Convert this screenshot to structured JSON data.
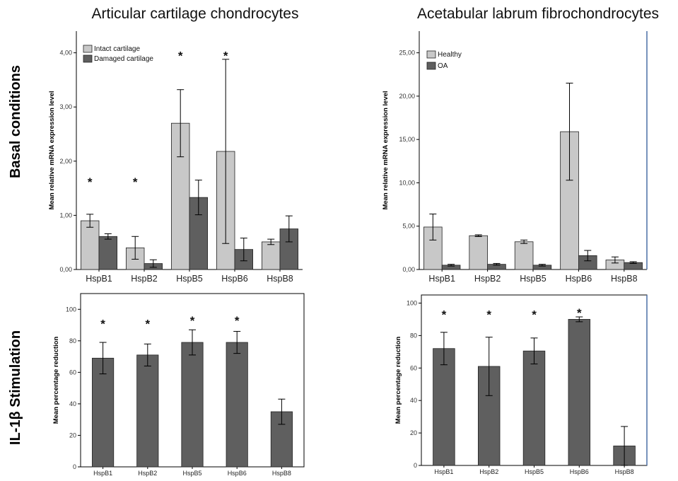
{
  "columns": [
    "Articular cartilage chondrocytes",
    "Acetabular labrum fibrochondrocytes"
  ],
  "rows": [
    "Basal conditions",
    "IL-1β Stimulation"
  ],
  "colors": {
    "light": "#c8c8c8",
    "dark": "#5f5f5f",
    "edge": "#000000",
    "right_border": "#4a6fa5"
  },
  "chart_data": [
    {
      "id": "basal-cartilage",
      "type": "bar",
      "ylabel": "Mean relative mRNA expression level",
      "ylim": [
        0,
        4.4
      ],
      "yticks": [
        0,
        1,
        2,
        3,
        4
      ],
      "ytick_labels": [
        "0,00",
        "1,00",
        "2,00",
        "3,00",
        "4,00"
      ],
      "categories": [
        "HspB1",
        "HspB2",
        "HspB5",
        "HspB6",
        "HspB8"
      ],
      "legend": "top-left",
      "series": [
        {
          "name": "Intact cartilage",
          "color": "#c8c8c8",
          "values": [
            0.9,
            0.4,
            2.7,
            2.18,
            0.51
          ],
          "errors": [
            0.12,
            0.21,
            0.62,
            1.7,
            0.05
          ]
        },
        {
          "name": "Damaged cartilage",
          "color": "#5f5f5f",
          "values": [
            0.61,
            0.11,
            1.33,
            0.37,
            0.75
          ],
          "errors": [
            0.05,
            0.07,
            0.32,
            0.21,
            0.24
          ]
        }
      ],
      "significance": [
        {
          "category": "HspB1",
          "value": 1.62,
          "text": "*"
        },
        {
          "category": "HspB2",
          "value": 1.62,
          "text": "*"
        },
        {
          "category": "HspB5",
          "value": 3.95,
          "text": "*"
        },
        {
          "category": "HspB6",
          "value": 3.95,
          "text": "*"
        }
      ]
    },
    {
      "id": "basal-labrum",
      "type": "bar",
      "ylabel": "Mean relative mRNA expression level",
      "ylim": [
        0,
        27.5
      ],
      "yticks": [
        0,
        5,
        10,
        15,
        20,
        25
      ],
      "ytick_labels": [
        "0,00",
        "5,00",
        "10,00",
        "15,00",
        "20,00",
        "25,00"
      ],
      "categories": [
        "HspB1",
        "HspB2",
        "HspB5",
        "HspB6",
        "HspB8"
      ],
      "legend": "top-left",
      "series": [
        {
          "name": "Healthy",
          "color": "#c8c8c8",
          "values": [
            4.9,
            3.9,
            3.2,
            15.9,
            1.1
          ],
          "errors": [
            1.5,
            0.1,
            0.2,
            5.6,
            0.35
          ]
        },
        {
          "name": "OA",
          "color": "#5f5f5f",
          "values": [
            0.5,
            0.6,
            0.5,
            1.6,
            0.8
          ],
          "errors": [
            0.1,
            0.1,
            0.1,
            0.6,
            0.1
          ]
        }
      ],
      "significance": []
    },
    {
      "id": "il1b-cartilage",
      "type": "bar",
      "ylabel": "Mean percentage reduction",
      "ylim": [
        0,
        110
      ],
      "yticks": [
        0,
        20,
        40,
        60,
        80,
        100
      ],
      "ytick_labels": [
        "0",
        "20",
        "40",
        "60",
        "80",
        "100"
      ],
      "categories": [
        "HspB1",
        "HspB2",
        "HspB5",
        "HspB6",
        "HspB8"
      ],
      "series": [
        {
          "name": "",
          "color": "#5f5f5f",
          "values": [
            69,
            71,
            79,
            79,
            35
          ],
          "errors": [
            10,
            7,
            8,
            7,
            8
          ]
        }
      ],
      "significance": [
        {
          "category": "HspB1",
          "value": 91,
          "text": "*"
        },
        {
          "category": "HspB2",
          "value": 91,
          "text": "*"
        },
        {
          "category": "HspB5",
          "value": 93,
          "text": "*"
        },
        {
          "category": "HspB6",
          "value": 93,
          "text": "*"
        }
      ]
    },
    {
      "id": "il1b-labrum",
      "type": "bar",
      "ylabel": "Mean percentage reduction",
      "ylim": [
        0,
        105
      ],
      "yticks": [
        0,
        20,
        40,
        60,
        80,
        100
      ],
      "ytick_labels": [
        "0",
        "20",
        "40",
        "60",
        "80",
        "100"
      ],
      "categories": [
        "HspB1",
        "HspB2",
        "HspB5",
        "HspB6",
        "HspB8"
      ],
      "series": [
        {
          "name": "",
          "color": "#5f5f5f",
          "values": [
            72,
            61,
            70.5,
            90,
            12
          ],
          "errors": [
            10,
            18,
            8,
            1.5,
            12
          ]
        }
      ],
      "significance": [
        {
          "category": "HspB1",
          "value": 93,
          "text": "*"
        },
        {
          "category": "HspB2",
          "value": 93,
          "text": "*"
        },
        {
          "category": "HspB5",
          "value": 93,
          "text": "*"
        },
        {
          "category": "HspB6",
          "value": 94,
          "text": "*"
        }
      ]
    }
  ]
}
